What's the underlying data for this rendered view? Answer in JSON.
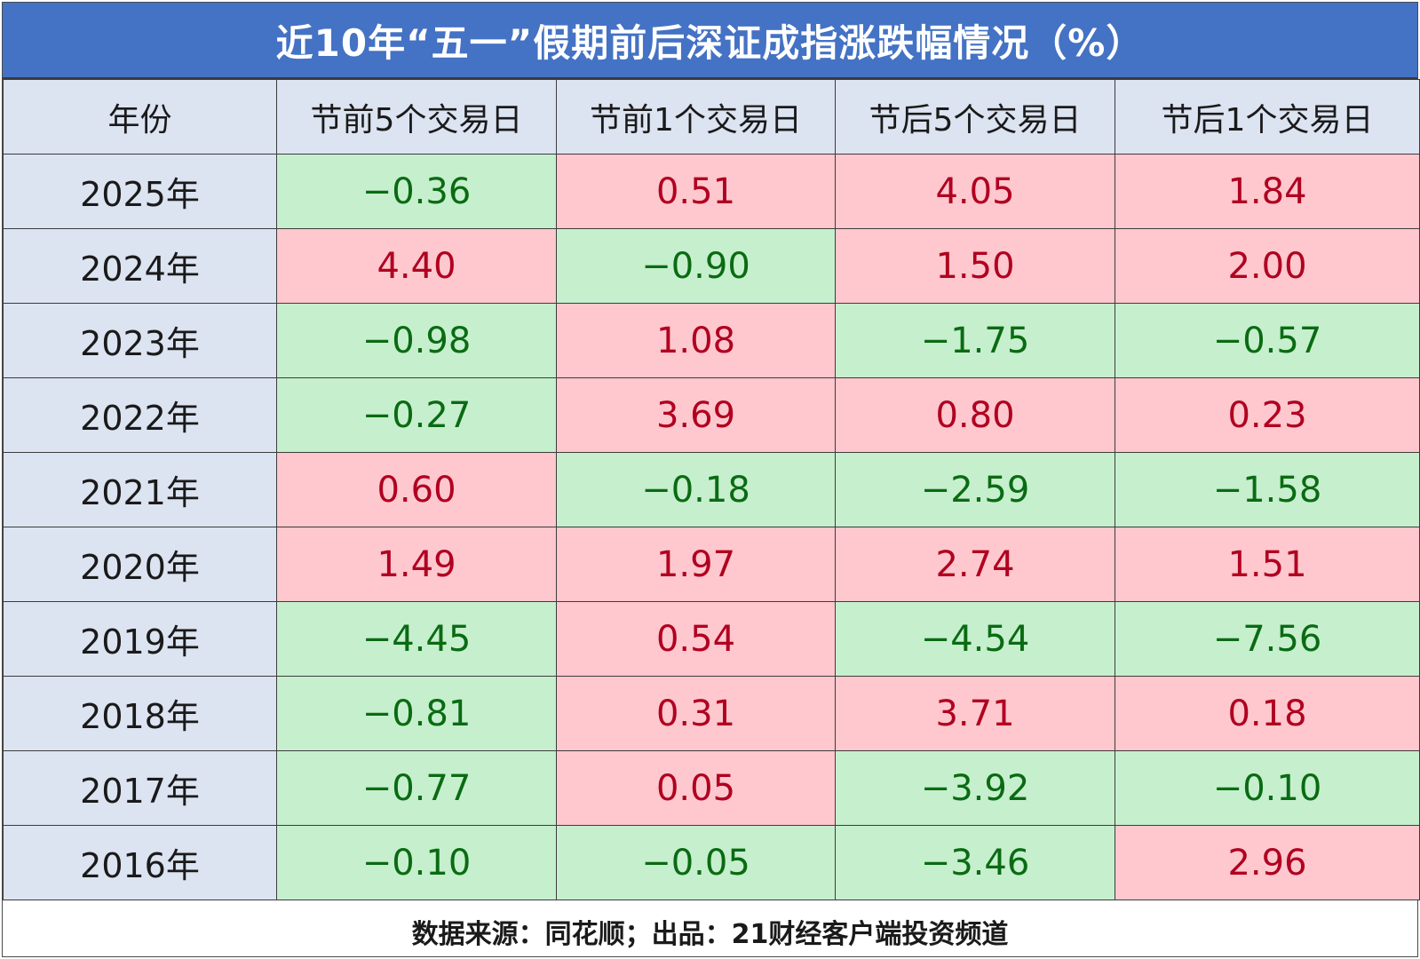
{
  "title": "近10年“五一”假期前后深证成指涨跌幅情况（%）",
  "colors": {
    "header_bg": "#4472c4",
    "label_bg": "#dce3f1",
    "positive_bg": "#ffc7ce",
    "positive_text": "#b00020",
    "negative_bg": "#c6efce",
    "negative_text": "#0a6b12"
  },
  "chart_data": {
    "type": "table",
    "title": "近10年“五一”假期前后深证成指涨跌幅情况（%）",
    "columns": [
      "年份",
      "节前5个交易日",
      "节前1个交易日",
      "节后5个交易日",
      "节后1个交易日"
    ],
    "rows": [
      {
        "year": "2025年",
        "values": [
          "−0.36",
          "0.51",
          "4.05",
          "1.84"
        ]
      },
      {
        "year": "2024年",
        "values": [
          "4.40",
          "−0.90",
          "1.50",
          "2.00"
        ]
      },
      {
        "year": "2023年",
        "values": [
          "−0.98",
          "1.08",
          "−1.75",
          "−0.57"
        ]
      },
      {
        "year": "2022年",
        "values": [
          "−0.27",
          "3.69",
          "0.80",
          "0.23"
        ]
      },
      {
        "year": "2021年",
        "values": [
          "0.60",
          "−0.18",
          "−2.59",
          "−1.58"
        ]
      },
      {
        "year": "2020年",
        "values": [
          "1.49",
          "1.97",
          "2.74",
          "1.51"
        ]
      },
      {
        "year": "2019年",
        "values": [
          "−4.45",
          "0.54",
          "−4.54",
          "−7.56"
        ]
      },
      {
        "year": "2018年",
        "values": [
          "−0.81",
          "0.31",
          "3.71",
          "0.18"
        ]
      },
      {
        "year": "2017年",
        "values": [
          "−0.77",
          "0.05",
          "−3.92",
          "−0.10"
        ]
      },
      {
        "year": "2016年",
        "values": [
          "−0.10",
          "−0.05",
          "−3.46",
          "2.96"
        ]
      }
    ]
  },
  "footer": "数据来源：同花顺；出品：21财经客户端投资频道"
}
